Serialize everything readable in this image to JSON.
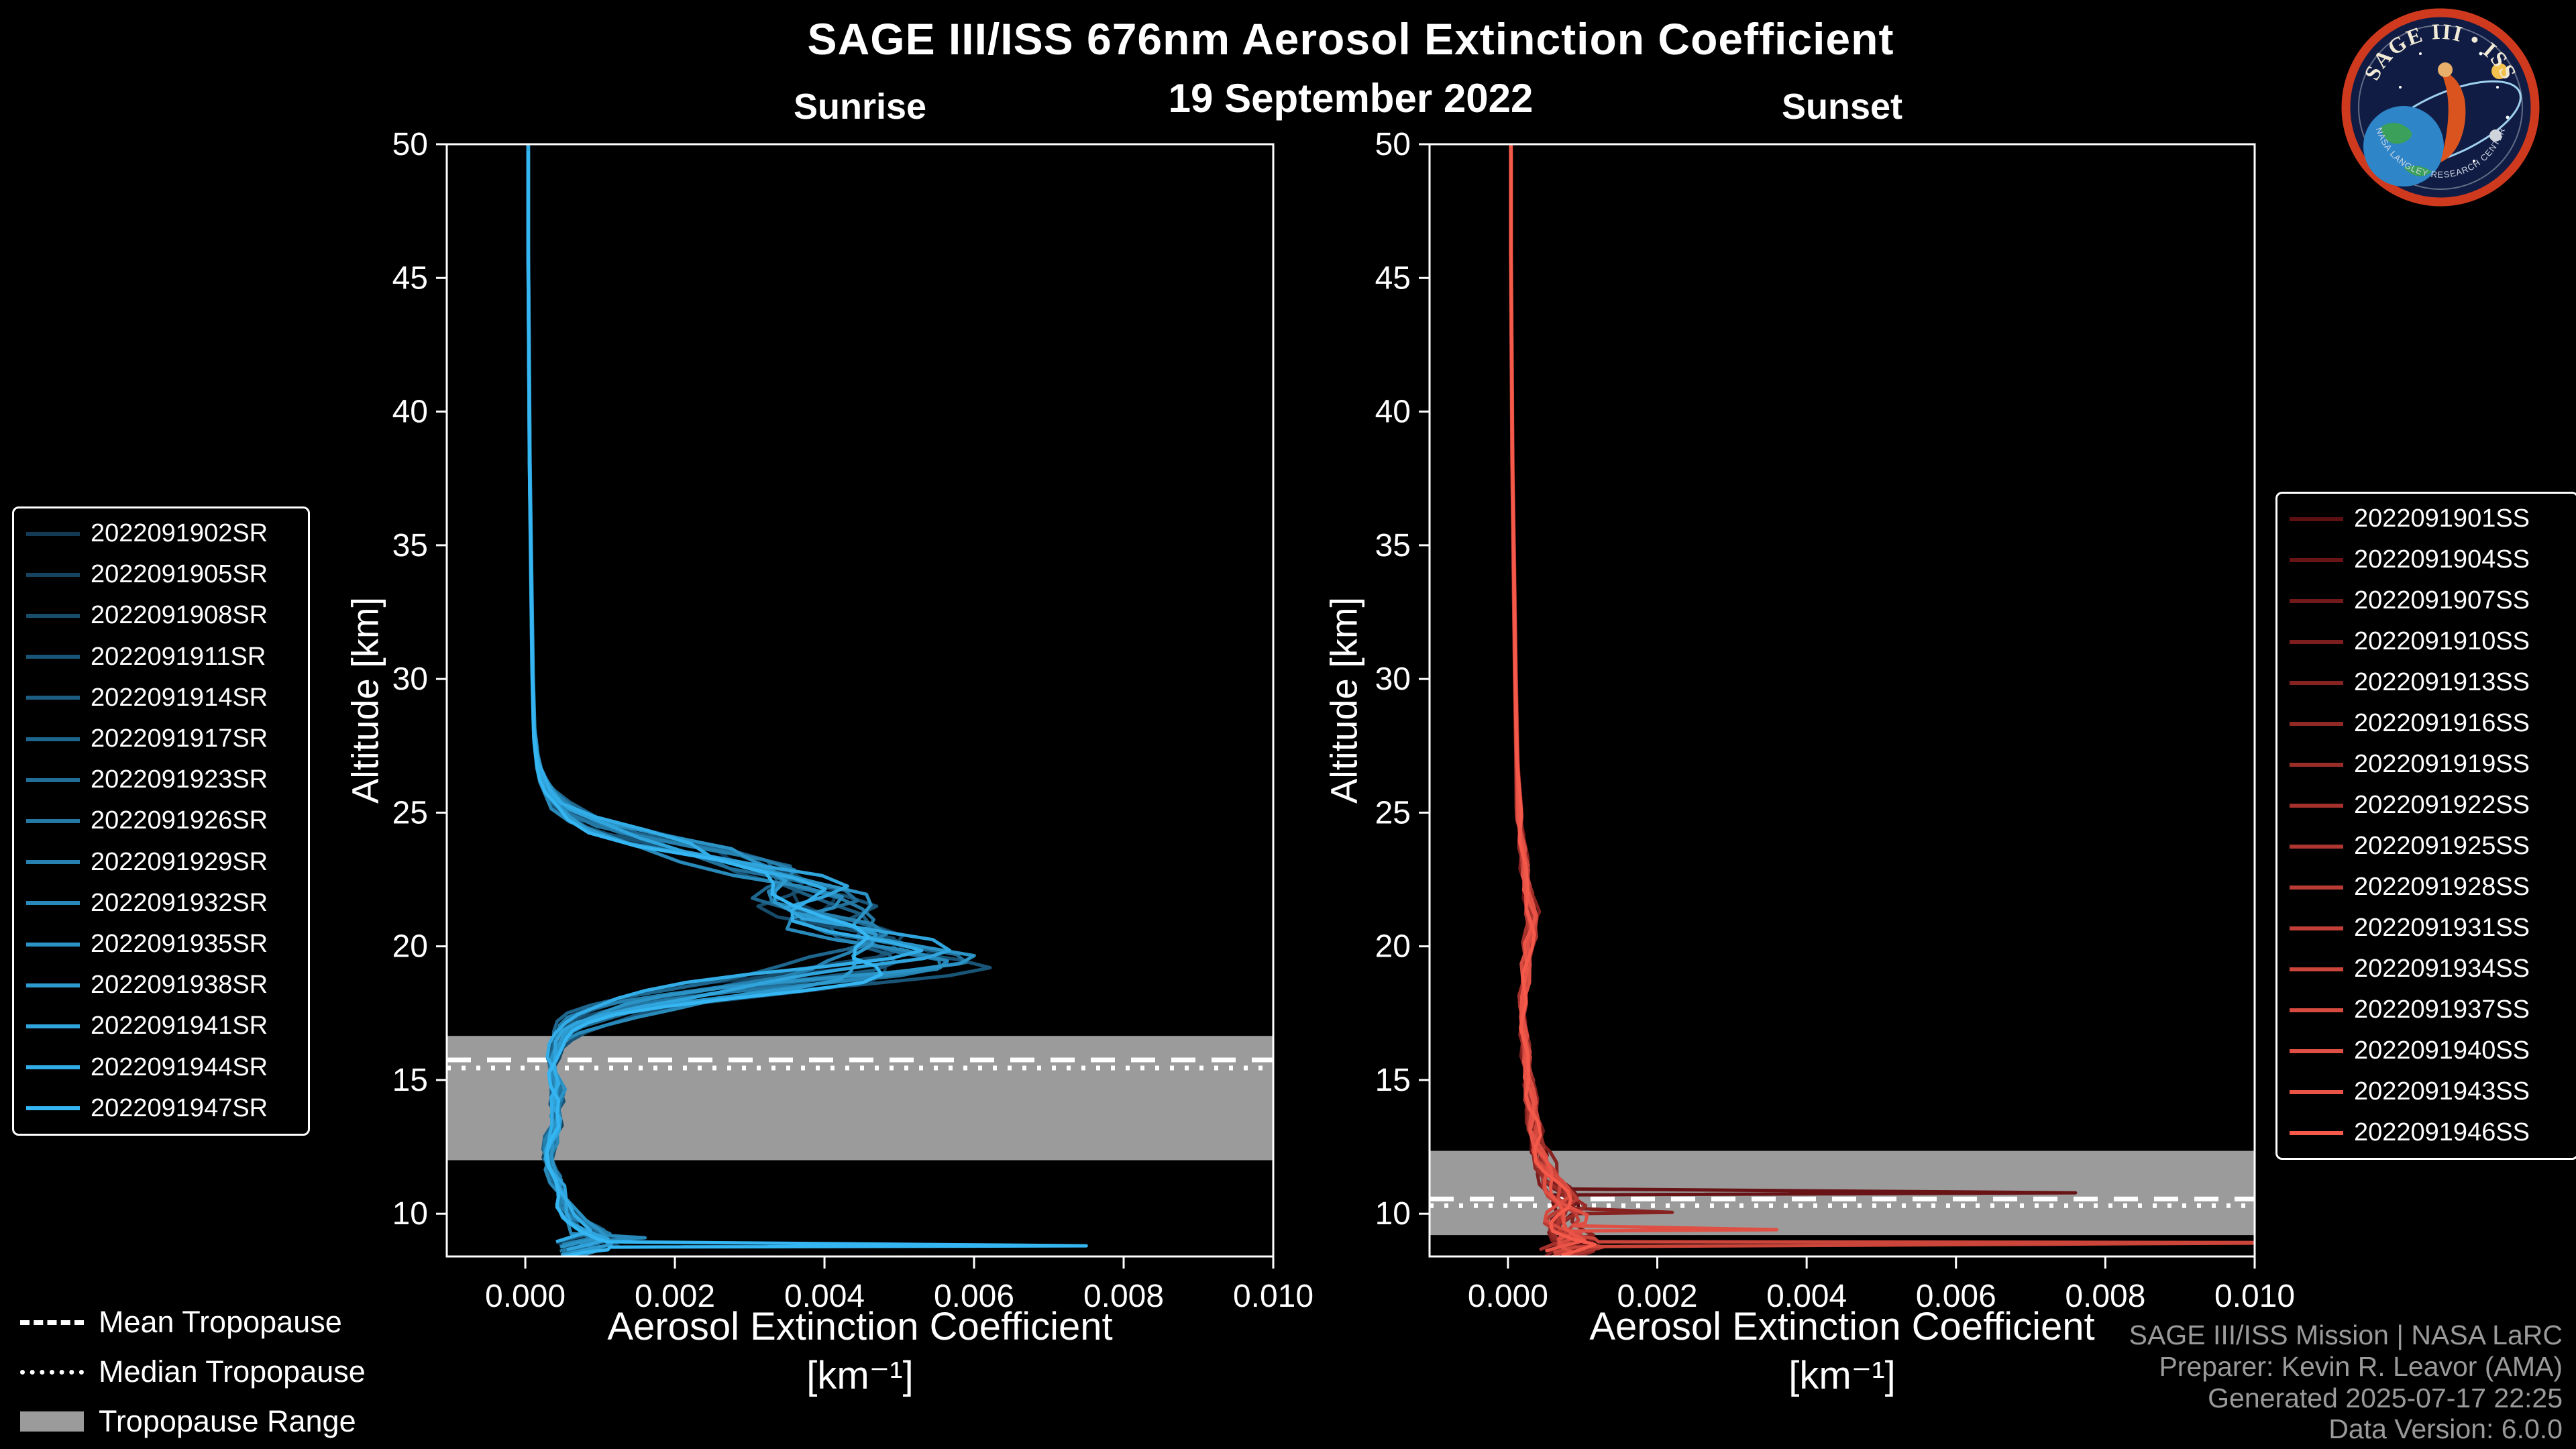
{
  "header": {
    "title": "SAGE III/ISS 676nm Aerosol Extinction Coefficient",
    "date": "19 September 2022"
  },
  "logo": {
    "arc_text": "SAGE III • ISS",
    "bottom_text": "NASA LANGLEY RESEARCH CENTER"
  },
  "colors": {
    "background": "#000000",
    "axis": "#ffffff",
    "tropopause_band": "#9b9b9b",
    "credits_text": "#9a9a9a"
  },
  "tropopause_legend": [
    {
      "label": "Mean Tropopause",
      "style": "dashed"
    },
    {
      "label": "Median Tropopause",
      "style": "dotted"
    },
    {
      "label": "Tropopause Range",
      "style": "patch",
      "color": "#9b9b9b"
    }
  ],
  "credits": [
    "SAGE III/ISS Mission | NASA LaRC",
    "Preparer: Kevin R. Leavor (AMA)",
    "Generated 2025-07-17 22:25",
    "Data Version: 6.0.0"
  ],
  "chart_data": [
    {
      "type": "line",
      "title": "Sunrise",
      "xlabel": "Aerosol Extinction Coefficient",
      "xunit": "[km⁻¹]",
      "ylabel": "Altitude [km]",
      "x_range": [
        -0.00105,
        0.01
      ],
      "y_range": [
        8.4,
        50
      ],
      "x_tick_values": [
        0.0,
        0.002,
        0.004,
        0.006,
        0.008,
        0.01
      ],
      "x_tick_labels": [
        "0.000",
        "0.002",
        "0.004",
        "0.006",
        "0.008",
        "0.010"
      ],
      "y_ticks": [
        10,
        15,
        20,
        25,
        30,
        35,
        40,
        45,
        50
      ],
      "grid": false,
      "legend_position": "left",
      "tropopause": {
        "range": [
          12.0,
          16.65
        ],
        "mean": 15.75,
        "median": 15.45
      },
      "base_profile": [
        [
          50,
          4e-05
        ],
        [
          46,
          4e-05
        ],
        [
          42,
          5e-05
        ],
        [
          38,
          6e-05
        ],
        [
          34,
          8e-05
        ],
        [
          30,
          0.0001
        ],
        [
          28,
          0.00012
        ],
        [
          27,
          0.00016
        ],
        [
          26.5,
          0.0002
        ],
        [
          26,
          0.00028
        ],
        [
          25.5,
          0.0004
        ],
        [
          25,
          0.0006
        ],
        [
          24.5,
          0.001
        ],
        [
          24,
          0.0016
        ],
        [
          23.5,
          0.0024
        ],
        [
          23,
          0.0031
        ],
        [
          22.6,
          0.0036
        ],
        [
          22.2,
          0.0039
        ],
        [
          21.8,
          0.004
        ],
        [
          21.4,
          0.0039
        ],
        [
          21,
          0.0041
        ],
        [
          20.6,
          0.0045
        ],
        [
          20.2,
          0.0049
        ],
        [
          19.8,
          0.0052
        ],
        [
          19.5,
          0.0053
        ],
        [
          19.2,
          0.0049
        ],
        [
          18.9,
          0.0043
        ],
        [
          18.6,
          0.0035
        ],
        [
          18.3,
          0.0027
        ],
        [
          18,
          0.002
        ],
        [
          17.7,
          0.0014
        ],
        [
          17.4,
          0.001
        ],
        [
          17.1,
          0.0007
        ],
        [
          16.8,
          0.00055
        ],
        [
          16.4,
          0.00045
        ],
        [
          16,
          0.0004
        ],
        [
          15.5,
          0.00035
        ],
        [
          15,
          0.0004
        ],
        [
          14.5,
          0.00045
        ],
        [
          14,
          0.0004
        ],
        [
          13.5,
          0.00045
        ],
        [
          13,
          0.0004
        ],
        [
          12.5,
          0.00032
        ],
        [
          12,
          0.0003
        ],
        [
          11.5,
          0.00038
        ],
        [
          11,
          0.00048
        ],
        [
          10.5,
          0.0005
        ],
        [
          10,
          0.00058
        ],
        [
          9.6,
          0.0007
        ],
        [
          9.3,
          0.0009
        ],
        [
          9,
          0.0011
        ],
        [
          8.8,
          0.0008
        ],
        [
          8.6,
          0.0005
        ]
      ],
      "series": [
        {
          "name": "2022091902SR",
          "color": "#123a55",
          "scale": 0.95,
          "alt_shift": 0.3,
          "wiggle": 0.12
        },
        {
          "name": "2022091905SR",
          "color": "#154360",
          "scale": 1.02,
          "alt_shift": -0.2,
          "wiggle": 0.12
        },
        {
          "name": "2022091908SR",
          "color": "#174c6b",
          "scale": 0.9,
          "alt_shift": 0.1,
          "wiggle": 0.12
        },
        {
          "name": "2022091911SR",
          "color": "#195577",
          "scale": 1.05,
          "alt_shift": -0.3,
          "wiggle": 0.12
        },
        {
          "name": "2022091914SR",
          "color": "#1c5d82",
          "scale": 0.98,
          "alt_shift": 0.2,
          "wiggle": 0.12
        },
        {
          "name": "2022091917SR",
          "color": "#1e668d",
          "scale": 0.88,
          "alt_shift": 0.4,
          "wiggle": 0.12
        },
        {
          "name": "2022091923SR",
          "color": "#216f98",
          "scale": 1.0,
          "alt_shift": -0.1,
          "wiggle": 0.12
        },
        {
          "name": "2022091926SR",
          "color": "#2378a4",
          "scale": 1.04,
          "alt_shift": 0.0,
          "wiggle": 0.12
        },
        {
          "name": "2022091929SR",
          "color": "#2681af",
          "scale": 0.92,
          "alt_shift": 0.25,
          "wiggle": 0.12
        },
        {
          "name": "2022091932SR",
          "color": "#288aba",
          "scale": 0.97,
          "alt_shift": -0.35,
          "wiggle": 0.12,
          "spikes": [
            {
              "alt": 9.1,
              "value": 0.0016
            }
          ]
        },
        {
          "name": "2022091935SR",
          "color": "#2b93c5",
          "scale": 1.06,
          "alt_shift": 0.15,
          "wiggle": 0.12
        },
        {
          "name": "2022091938SR",
          "color": "#2d9bd0",
          "scale": 0.94,
          "alt_shift": -0.15,
          "wiggle": 0.12
        },
        {
          "name": "2022091941SR",
          "color": "#30a4dc",
          "scale": 1.0,
          "alt_shift": 0.05,
          "wiggle": 0.12
        },
        {
          "name": "2022091944SR",
          "color": "#32ade7",
          "scale": 0.9,
          "alt_shift": 0.35,
          "wiggle": 0.12
        },
        {
          "name": "2022091947SR",
          "color": "#35b6f2",
          "scale": 0.96,
          "alt_shift": -0.25,
          "wiggle": 0.12,
          "spikes": [
            {
              "alt": 8.8,
              "value": 0.0075
            }
          ]
        }
      ]
    },
    {
      "type": "line",
      "title": "Sunset",
      "xlabel": "Aerosol Extinction Coefficient",
      "xunit": "[km⁻¹]",
      "ylabel": "Altitude [km]",
      "x_range": [
        -0.00105,
        0.01
      ],
      "y_range": [
        8.4,
        50
      ],
      "x_tick_values": [
        0.0,
        0.002,
        0.004,
        0.006,
        0.008,
        0.01
      ],
      "x_tick_labels": [
        "0.000",
        "0.002",
        "0.004",
        "0.006",
        "0.008",
        "0.010"
      ],
      "y_ticks": [
        10,
        15,
        20,
        25,
        30,
        35,
        40,
        45,
        50
      ],
      "grid": false,
      "legend_position": "right",
      "tropopause": {
        "range": [
          9.2,
          12.35
        ],
        "mean": 10.55,
        "median": 10.3
      },
      "base_profile": [
        [
          50,
          4e-05
        ],
        [
          46,
          4e-05
        ],
        [
          42,
          5e-05
        ],
        [
          38,
          6e-05
        ],
        [
          34,
          8e-05
        ],
        [
          30,
          0.0001
        ],
        [
          27,
          0.00012
        ],
        [
          25,
          0.00015
        ],
        [
          24,
          0.00018
        ],
        [
          23,
          0.00022
        ],
        [
          22,
          0.00027
        ],
        [
          21.5,
          0.0003
        ],
        [
          21,
          0.00032
        ],
        [
          20.5,
          0.0003
        ],
        [
          20,
          0.00028
        ],
        [
          19,
          0.00024
        ],
        [
          18,
          0.0002
        ],
        [
          17,
          0.0002
        ],
        [
          16,
          0.00024
        ],
        [
          15,
          0.00028
        ],
        [
          14.5,
          0.0003
        ],
        [
          14,
          0.0003
        ],
        [
          13.5,
          0.00034
        ],
        [
          13,
          0.00038
        ],
        [
          12.5,
          0.0004
        ],
        [
          12,
          0.00045
        ],
        [
          11.6,
          0.0005
        ],
        [
          11.2,
          0.00058
        ],
        [
          10.9,
          0.00066
        ],
        [
          10.6,
          0.00075
        ],
        [
          10.3,
          0.00085
        ],
        [
          10,
          0.0008
        ],
        [
          9.7,
          0.0007
        ],
        [
          9.4,
          0.00065
        ],
        [
          9.1,
          0.0008
        ],
        [
          8.9,
          0.001
        ],
        [
          8.7,
          0.0008
        ],
        [
          8.5,
          0.0006
        ]
      ],
      "series": [
        {
          "name": "2022091901SS",
          "color": "#5e0f12",
          "scale": 1.0,
          "alt_shift": 0.2,
          "wiggle": 0.2
        },
        {
          "name": "2022091904SS",
          "color": "#681416",
          "scale": 0.95,
          "alt_shift": -0.2,
          "wiggle": 0.2,
          "spikes": [
            {
              "alt": 10.78,
              "value": 0.0076
            }
          ]
        },
        {
          "name": "2022091907SS",
          "color": "#72191a",
          "scale": 1.05,
          "alt_shift": 0.1,
          "wiggle": 0.2
        },
        {
          "name": "2022091910SS",
          "color": "#7c1e1d",
          "scale": 0.9,
          "alt_shift": -0.1,
          "wiggle": 0.2
        },
        {
          "name": "2022091913SS",
          "color": "#862321",
          "scale": 1.1,
          "alt_shift": 0.3,
          "wiggle": 0.2,
          "spikes": [
            {
              "alt": 10.05,
              "value": 0.0022
            }
          ]
        },
        {
          "name": "2022091916SS",
          "color": "#902825",
          "scale": 0.98,
          "alt_shift": -0.3,
          "wiggle": 0.2
        },
        {
          "name": "2022091919SS",
          "color": "#9a2d28",
          "scale": 1.02,
          "alt_shift": 0.0,
          "wiggle": 0.2
        },
        {
          "name": "2022091922SS",
          "color": "#a4312c",
          "scale": 0.88,
          "alt_shift": 0.15,
          "wiggle": 0.2
        },
        {
          "name": "2022091925SS",
          "color": "#ae3630",
          "scale": 1.06,
          "alt_shift": -0.15,
          "wiggle": 0.2
        },
        {
          "name": "2022091928SS",
          "color": "#b83b34",
          "scale": 0.94,
          "alt_shift": 0.25,
          "wiggle": 0.2
        },
        {
          "name": "2022091931SS",
          "color": "#c24037",
          "scale": 1.0,
          "alt_shift": -0.25,
          "wiggle": 0.2
        },
        {
          "name": "2022091934SS",
          "color": "#cc453b",
          "scale": 1.04,
          "alt_shift": 0.05,
          "wiggle": 0.2,
          "spikes": [
            {
              "alt": 8.92,
              "value": 0.0113
            }
          ]
        },
        {
          "name": "2022091937SS",
          "color": "#d64a3f",
          "scale": 0.92,
          "alt_shift": 0.35,
          "wiggle": 0.2
        },
        {
          "name": "2022091940SS",
          "color": "#e04f43",
          "scale": 1.08,
          "alt_shift": -0.35,
          "wiggle": 0.2,
          "spikes": [
            {
              "alt": 9.4,
              "value": 0.0036
            }
          ]
        },
        {
          "name": "2022091943SS",
          "color": "#ea5446",
          "scale": 0.96,
          "alt_shift": 0.1,
          "wiggle": 0.2
        },
        {
          "name": "2022091946SS",
          "color": "#f4594a",
          "scale": 1.01,
          "alt_shift": -0.05,
          "wiggle": 0.2
        }
      ]
    }
  ]
}
